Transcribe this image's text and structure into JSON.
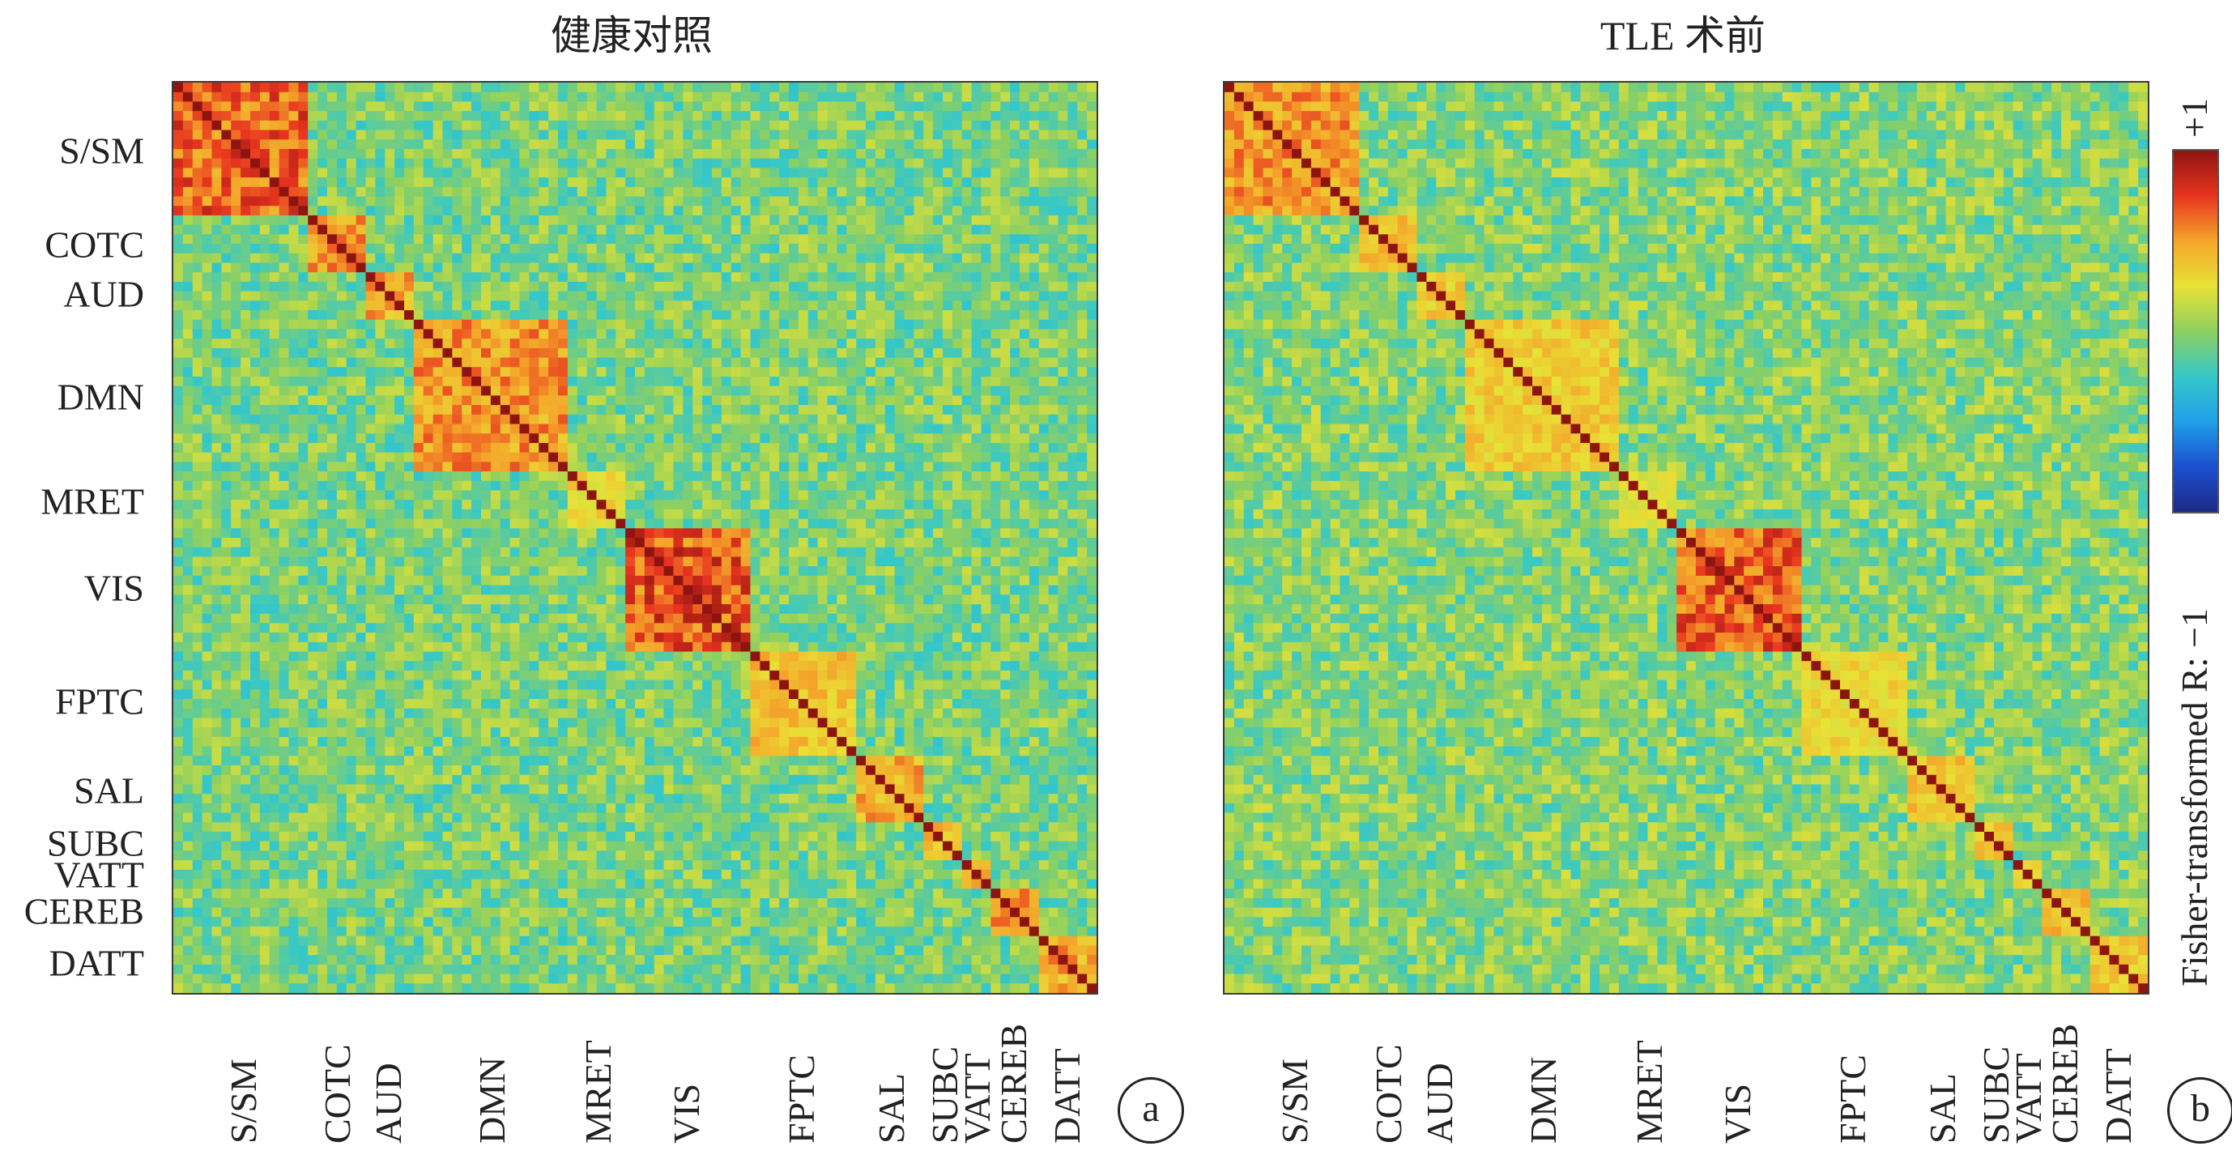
{
  "chart_data": [
    {
      "type": "heatmap",
      "panel": "a",
      "title": "健康对照",
      "networks": [
        "S/SM",
        "COTC",
        "AUD",
        "DMN",
        "MRET",
        "VIS",
        "FPTC",
        "SAL",
        "SUBC",
        "VATT",
        "CEREB",
        "DATT"
      ],
      "network_size_fraction": [
        0.15,
        0.055,
        0.055,
        0.17,
        0.06,
        0.13,
        0.12,
        0.075,
        0.04,
        0.03,
        0.05,
        0.065
      ],
      "within_network_mean_r": [
        0.75,
        0.65,
        0.55,
        0.6,
        0.35,
        0.8,
        0.45,
        0.55,
        0.5,
        0.5,
        0.6,
        0.55
      ],
      "background_r": -0.05,
      "color_range": [
        -1,
        1
      ]
    },
    {
      "type": "heatmap",
      "panel": "b",
      "title": "TLE 术前",
      "networks": [
        "S/SM",
        "COTC",
        "AUD",
        "DMN",
        "MRET",
        "VIS",
        "FPTC",
        "SAL",
        "SUBC",
        "VATT",
        "CEREB",
        "DATT"
      ],
      "network_size_fraction": [
        0.15,
        0.055,
        0.055,
        0.17,
        0.06,
        0.13,
        0.12,
        0.075,
        0.04,
        0.03,
        0.05,
        0.065
      ],
      "within_network_mean_r": [
        0.6,
        0.5,
        0.4,
        0.4,
        0.25,
        0.75,
        0.35,
        0.45,
        0.4,
        0.35,
        0.45,
        0.4
      ],
      "background_r": -0.02,
      "color_range": [
        -1,
        1
      ]
    }
  ],
  "row_labels": [
    "S/SM",
    "COTC",
    "AUD",
    "DMN",
    "MRET",
    "VIS",
    "FPTC",
    "SAL",
    "SUBC",
    "VATT",
    "CEREB",
    "DATT"
  ],
  "col_labels": [
    "S/SM",
    "COTC",
    "AUD",
    "DMN",
    "MRET",
    "VIS",
    "FPTC",
    "SAL",
    "SUBC",
    "VATT",
    "CEREB",
    "DATT"
  ],
  "panel_letters": [
    "a",
    "b"
  ],
  "colorbar": {
    "label": "Fisher-transformed R: −1",
    "top_label": "+1",
    "colors": [
      "#1d2a87",
      "#1c4fd1",
      "#1fa0e8",
      "#36c8c8",
      "#8ed060",
      "#e8e236",
      "#f4a52a",
      "#e8341f",
      "#8e1410"
    ]
  }
}
